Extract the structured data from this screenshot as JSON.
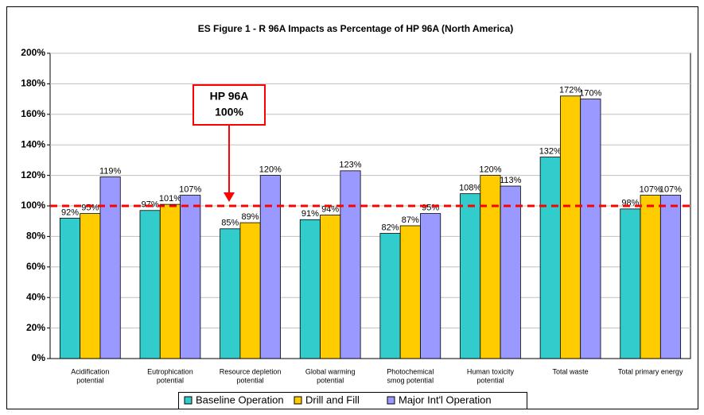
{
  "chart_data": {
    "type": "bar",
    "title": "ES Figure 1 - R 96A Impacts as Percentage of HP 96A (North America)",
    "categories": [
      [
        "Acidification",
        "potential"
      ],
      [
        "Eutrophication",
        "potential"
      ],
      [
        "Resource depletion",
        "potential"
      ],
      [
        "Global warming",
        "potential"
      ],
      [
        "Photochemical",
        "smog potential"
      ],
      [
        "Human toxicity",
        "potential"
      ],
      [
        "Total waste"
      ],
      [
        "Total primary energy"
      ]
    ],
    "series": [
      {
        "name": "Baseline Operation",
        "color": "#33cccc",
        "values": [
          92,
          97,
          85,
          91,
          82,
          108,
          132,
          98
        ],
        "value_labels": [
          "92%",
          "97%",
          "85%",
          "91%",
          "82%",
          "108%",
          "132%",
          "98%"
        ]
      },
      {
        "name": "Drill and Fill",
        "color": "#ffcc00",
        "values": [
          95,
          101,
          89,
          94,
          87,
          120,
          172,
          107
        ],
        "value_labels": [
          "95%",
          "101%",
          "89%",
          "94%",
          "87%",
          "120%",
          "172%",
          "107%"
        ]
      },
      {
        "name": "Major Int'l Operation",
        "color": "#9999ff",
        "values": [
          119,
          107,
          120,
          123,
          95,
          113,
          170,
          107
        ],
        "value_labels": [
          "119%",
          "107%",
          "120%",
          "123%",
          "95%",
          "113%",
          "170%",
          "107%"
        ]
      }
    ],
    "ylim": [
      0,
      200
    ],
    "yticks": [
      {
        "value": 0,
        "label": "0%"
      },
      {
        "value": 20,
        "label": "20%"
      },
      {
        "value": 40,
        "label": "40%"
      },
      {
        "value": 60,
        "label": "60%"
      },
      {
        "value": 80,
        "label": "80%"
      },
      {
        "value": 100,
        "label": "100%"
      },
      {
        "value": 120,
        "label": "120%"
      },
      {
        "value": 140,
        "label": "140%"
      },
      {
        "value": 160,
        "label": "160%"
      },
      {
        "value": 180,
        "label": "180%"
      },
      {
        "value": 200,
        "label": "200%"
      }
    ],
    "grid": true,
    "reference_line": {
      "value": 100,
      "color": "#ff0000",
      "annotation": [
        "HP 96A",
        "100%"
      ]
    },
    "legend": "bottom"
  }
}
